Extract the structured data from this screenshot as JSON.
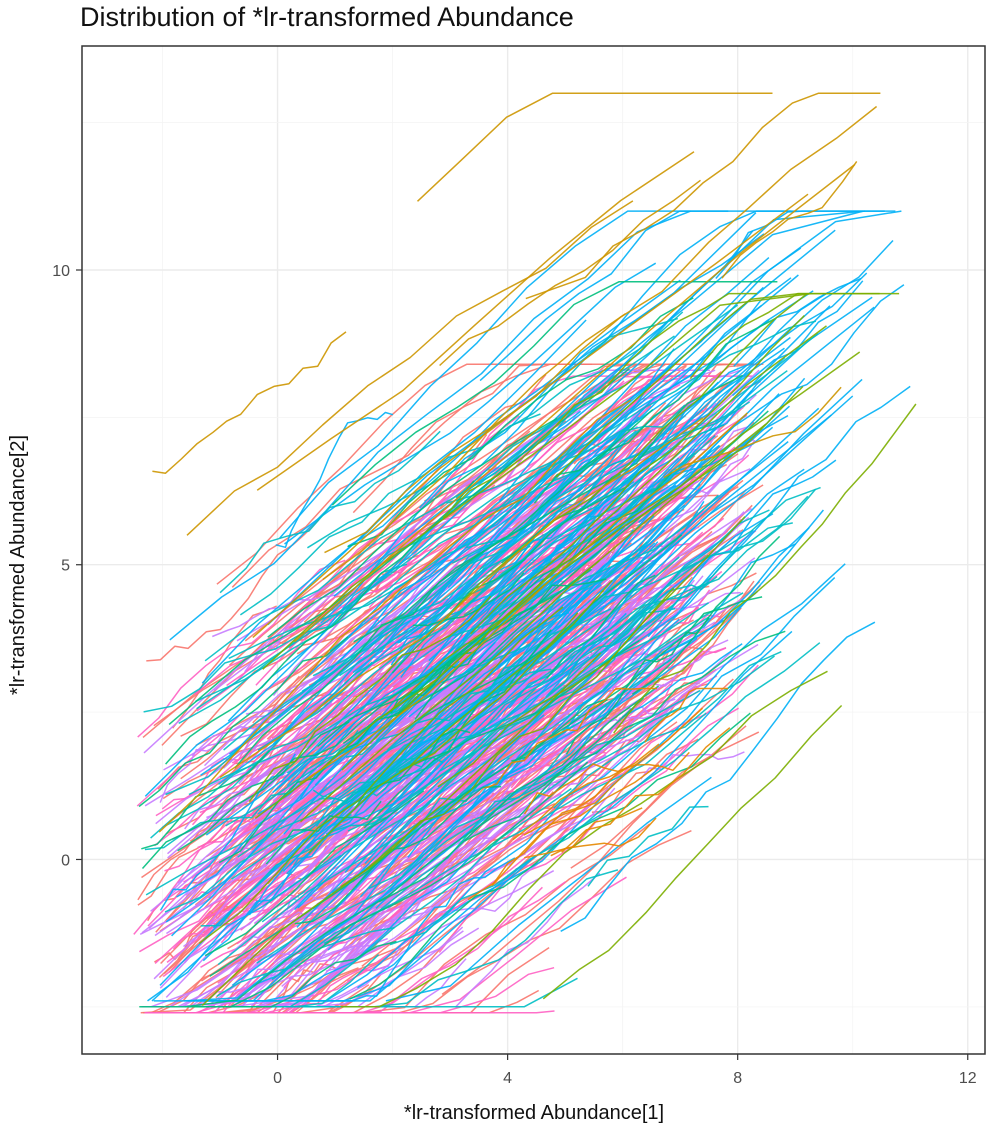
{
  "chart_data": {
    "type": "line",
    "title": "Distribution of *lr-transformed Abundance",
    "xlabel": "*lr-transformed Abundance[1]",
    "ylabel": "*lr-transformed Abundance[2]",
    "xlim": [
      -3.4,
      12.3
    ],
    "ylim": [
      -3.3,
      13.8
    ],
    "x_ticks": [
      0,
      4,
      8,
      12
    ],
    "x_tick_labels": [
      "0",
      "4",
      "8",
      "12"
    ],
    "y_ticks": [
      0,
      5,
      10
    ],
    "y_tick_labels": [
      "0",
      "5",
      "10"
    ],
    "grid": true,
    "legend": "none",
    "series": [
      {
        "color": "#f8766d",
        "line_count": 260,
        "x_range": [
          -2.5,
          8.5
        ],
        "y_range": [
          -2.6,
          8.4
        ],
        "y_at_x_min": -1.5,
        "y_at_x_max": 6.8
      },
      {
        "color": "#ff61c3",
        "line_count": 180,
        "x_range": [
          -2.5,
          8.4
        ],
        "y_range": [
          -2.6,
          8.2
        ],
        "y_at_x_min": -1.6,
        "y_at_x_max": 6.6
      },
      {
        "color": "#c77cff",
        "line_count": 200,
        "x_range": [
          -2.4,
          8.4
        ],
        "y_range": [
          -2.5,
          8.3
        ],
        "y_at_x_min": -1.7,
        "y_at_x_max": 6.4
      },
      {
        "color": "#00b0f6",
        "line_count": 120,
        "x_range": [
          -2.3,
          11.0
        ],
        "y_range": [
          -2.4,
          11.0
        ],
        "y_at_x_min": -1.5,
        "y_at_x_max": 10.0
      },
      {
        "color": "#00bfc4",
        "line_count": 70,
        "x_range": [
          -2.5,
          9.5
        ],
        "y_range": [
          -2.5,
          9.8
        ],
        "y_at_x_min": -0.9,
        "y_at_x_max": 7.0
      },
      {
        "color": "#00bf7d",
        "line_count": 40,
        "x_range": [
          -2.5,
          9.2
        ],
        "y_range": [
          -2.5,
          9.8
        ],
        "y_at_x_min": -1.0,
        "y_at_x_max": 7.5
      },
      {
        "color": "#7cae00",
        "line_count": 20,
        "x_range": [
          -2.3,
          11.4
        ],
        "y_range": [
          -2.5,
          9.6
        ],
        "y_at_x_min": -1.8,
        "y_at_x_max": 9.5
      },
      {
        "color": "#cd9600",
        "line_count": 15,
        "x_range": [
          -2.5,
          11.4
        ],
        "y_range": [
          -2.6,
          13.0
        ],
        "y_at_x_min": 2.3,
        "y_at_x_max": 12.8
      },
      {
        "color": "#e58700",
        "line_count": 10,
        "x_range": [
          3.0,
          8.0
        ],
        "y_range": [
          -0.8,
          2.9
        ],
        "y_at_x_min": -0.5,
        "y_at_x_max": 2.6
      }
    ]
  }
}
